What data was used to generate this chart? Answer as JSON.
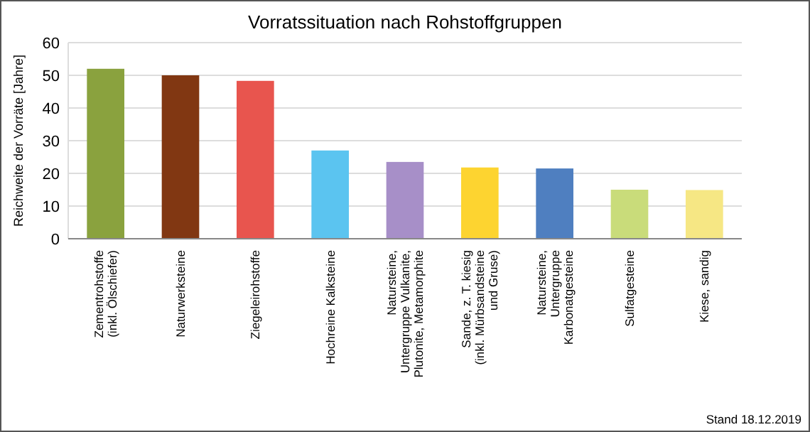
{
  "chart_data": {
    "type": "bar",
    "title": "Vorratssituation nach Rohstoffgruppen",
    "ylabel": "Reichweite der Vorräte [Jahre]",
    "categories": [
      "Zementrohstoffe\n(inkl. Ölschiefer)",
      "Naturwerksteine",
      "Ziegeleirohstoffe",
      "Hochreine Kalksteine",
      "Natursteine,\nUntergruppe Vulkanite,\nPlutonite, Metamorphite",
      "Sande, z. T. kiesig\n(inkl. Mürbsandsteine\nund Gruse)",
      "Natursteine,\nUntergruppe\nKarbonatgesteine",
      "Sulfatgesteine",
      "Kiese, sandig"
    ],
    "values": [
      52,
      50,
      48.3,
      27,
      23.5,
      21.8,
      21.5,
      15,
      14.9
    ],
    "colors": [
      "#8aa23e",
      "#813712",
      "#e8554e",
      "#5bc4f0",
      "#a78fc8",
      "#fdd430",
      "#4f7fc0",
      "#c9dc7a",
      "#f6e784"
    ],
    "ylim": [
      0,
      60
    ],
    "yticks": [
      0,
      10,
      20,
      30,
      40,
      50,
      60
    ],
    "grid": "y",
    "annotations": [
      "Stand 18.12.2019"
    ]
  }
}
